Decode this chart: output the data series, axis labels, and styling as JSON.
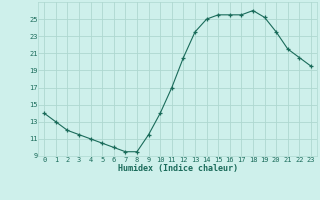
{
  "x": [
    0,
    1,
    2,
    3,
    4,
    5,
    6,
    7,
    8,
    9,
    10,
    11,
    12,
    13,
    14,
    15,
    16,
    17,
    18,
    19,
    20,
    21,
    22,
    23
  ],
  "y": [
    14.0,
    13.0,
    12.0,
    11.5,
    11.0,
    10.5,
    10.0,
    9.5,
    9.5,
    11.5,
    14.0,
    17.0,
    20.5,
    23.5,
    25.0,
    25.5,
    25.5,
    25.5,
    26.0,
    25.2,
    23.5,
    21.5,
    20.5,
    19.5
  ],
  "xlabel": "Humidex (Indice chaleur)",
  "ylim": [
    9,
    27
  ],
  "yticks": [
    9,
    11,
    13,
    15,
    17,
    19,
    21,
    23,
    25
  ],
  "xticks": [
    0,
    1,
    2,
    3,
    4,
    5,
    6,
    7,
    8,
    9,
    10,
    11,
    12,
    13,
    14,
    15,
    16,
    17,
    18,
    19,
    20,
    21,
    22,
    23
  ],
  "line_color": "#1a6b5a",
  "marker": "+",
  "marker_size": 3,
  "bg_color": "#cef0eb",
  "grid_color": "#aed8d0",
  "tick_color": "#1a6b5a",
  "label_color": "#1a6b5a"
}
